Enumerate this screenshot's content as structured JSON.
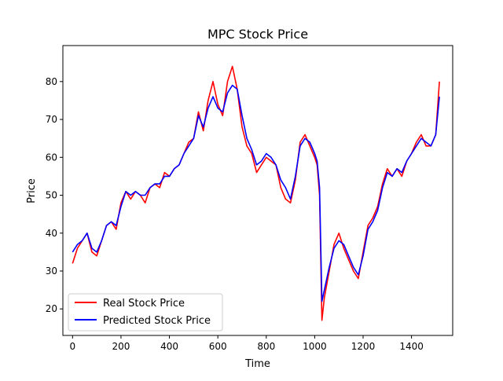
{
  "chart_data": {
    "type": "line",
    "title": "MPC Stock Price",
    "xlabel": "Time",
    "ylabel": "Price",
    "xlim": [
      -40,
      1570
    ],
    "ylim": [
      13,
      89.5
    ],
    "xticks": [
      0,
      200,
      400,
      600,
      800,
      1000,
      1200,
      1400
    ],
    "yticks": [
      20,
      30,
      40,
      50,
      60,
      70,
      80
    ],
    "grid": false,
    "legend_position": "lower-left",
    "x": [
      0,
      20,
      40,
      60,
      80,
      100,
      120,
      140,
      160,
      180,
      200,
      220,
      240,
      260,
      280,
      300,
      320,
      340,
      360,
      380,
      400,
      420,
      440,
      460,
      480,
      500,
      520,
      540,
      560,
      580,
      600,
      620,
      640,
      660,
      680,
      700,
      720,
      740,
      760,
      780,
      800,
      820,
      840,
      860,
      880,
      900,
      920,
      940,
      960,
      980,
      1000,
      1010,
      1020,
      1030,
      1040,
      1060,
      1080,
      1100,
      1120,
      1140,
      1160,
      1180,
      1200,
      1220,
      1240,
      1260,
      1280,
      1300,
      1320,
      1340,
      1360,
      1380,
      1400,
      1420,
      1440,
      1460,
      1480,
      1500,
      1515
    ],
    "series": [
      {
        "name": "Real Stock Price",
        "color": "#ff0000",
        "values": [
          32,
          36,
          38,
          40,
          35,
          34,
          38,
          42,
          43,
          41,
          48,
          51,
          49,
          51,
          50,
          48,
          52,
          53,
          52,
          56,
          55,
          57,
          58,
          61,
          64,
          65,
          72,
          67,
          75,
          80,
          74,
          71,
          80,
          84,
          78,
          68,
          63,
          61,
          56,
          58,
          60,
          59,
          58,
          52,
          49,
          48,
          54,
          64,
          66,
          63,
          60,
          58,
          50,
          17,
          23,
          30,
          37,
          40,
          36,
          33,
          30,
          28,
          35,
          42,
          44,
          47,
          53,
          57,
          55,
          57,
          55,
          59,
          61,
          64,
          66,
          63,
          63,
          66,
          80
        ]
      },
      {
        "name": "Predicted Stock Price",
        "color": "#0000ff",
        "values": [
          35,
          37,
          38,
          40,
          36,
          35,
          38,
          42,
          43,
          42,
          47,
          51,
          50,
          51,
          50,
          50,
          52,
          53,
          53,
          55,
          55,
          57,
          58,
          61,
          63,
          65,
          71,
          68,
          73,
          76,
          73,
          72,
          77,
          79,
          78,
          71,
          65,
          62,
          58,
          59,
          61,
          60,
          58,
          54,
          52,
          49,
          55,
          63,
          65,
          64,
          61,
          59,
          52,
          22,
          25,
          31,
          36,
          38,
          37,
          34,
          31,
          29,
          34,
          41,
          43,
          46,
          52,
          56,
          55,
          57,
          56,
          59,
          61,
          63,
          65,
          64,
          63,
          66,
          76
        ]
      }
    ]
  }
}
